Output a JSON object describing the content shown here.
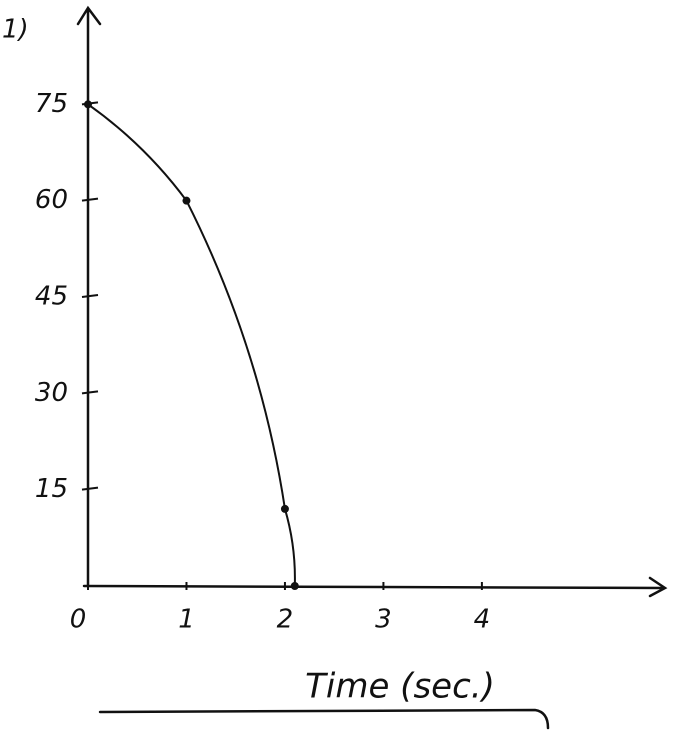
{
  "chart_data": {
    "type": "line",
    "title": "1)",
    "x_label": "Time (sec.)",
    "x": [
      0,
      1,
      2,
      2.1
    ],
    "series": [
      {
        "values": [
          75,
          60,
          12,
          0
        ],
        "color": "#111111"
      }
    ],
    "xlim": [
      0,
      5.9
    ],
    "ylim": [
      0,
      90
    ],
    "xticks": [
      0,
      1,
      2,
      3,
      4
    ],
    "yticks": [
      15,
      30,
      45,
      60,
      75
    ],
    "grid": false
  }
}
